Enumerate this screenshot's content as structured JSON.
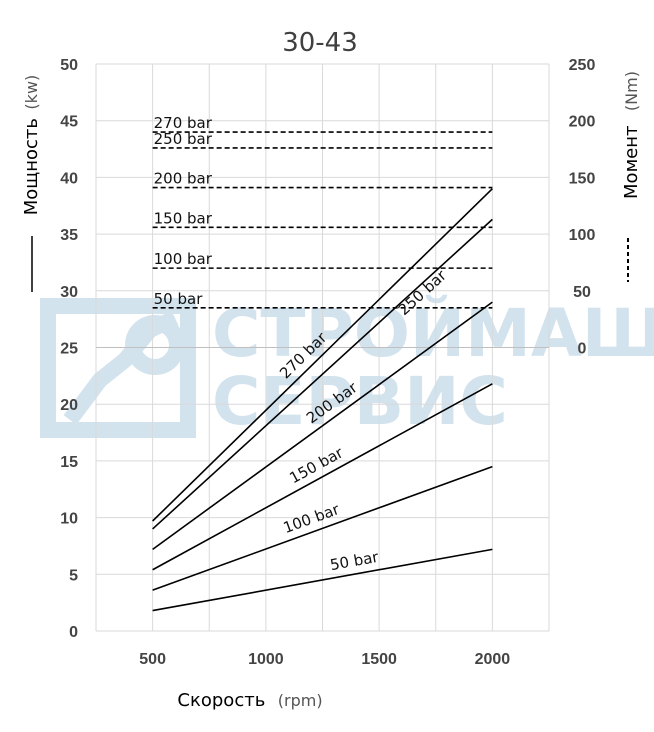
{
  "chart_data": {
    "type": "line",
    "title": "30-43",
    "xlabel": "Скорость",
    "xlabel_unit": "(rpm)",
    "ylabel_left": "Мощность",
    "ylabel_left_unit": "(kw)",
    "ylabel_right": "Момент",
    "ylabel_right_unit": "(Nm)",
    "left_legend_symbol": "solid",
    "right_legend_symbol": "dashed",
    "xlim": [
      250,
      2250
    ],
    "ylim_left": [
      0,
      50
    ],
    "ylim_right": [
      0,
      250
    ],
    "x_ticks": [
      "500",
      "1000",
      "1500",
      "2000"
    ],
    "y_ticks_left": [
      "0",
      "5",
      "10",
      "15",
      "20",
      "25",
      "30",
      "35",
      "40",
      "45",
      "50"
    ],
    "y_ticks_right": [
      "0",
      "50",
      "100",
      "150",
      "200",
      "250"
    ],
    "grid": true,
    "power_series": [
      {
        "name": "270 bar",
        "x": [
          500,
          2000
        ],
        "y": [
          9.7,
          39.0
        ]
      },
      {
        "name": "250 bar",
        "x": [
          500,
          2000
        ],
        "y": [
          9.0,
          36.3
        ]
      },
      {
        "name": "200 bar",
        "x": [
          500,
          2000
        ],
        "y": [
          7.2,
          29.0
        ]
      },
      {
        "name": "150 bar",
        "x": [
          500,
          2000
        ],
        "y": [
          5.4,
          21.8
        ]
      },
      {
        "name": "100 bar",
        "x": [
          500,
          2000
        ],
        "y": [
          3.6,
          14.5
        ]
      },
      {
        "name": "50 bar",
        "x": [
          500,
          2000
        ],
        "y": [
          1.8,
          7.2
        ]
      }
    ],
    "torque_series": [
      {
        "name": "270 bar",
        "x": [
          500,
          2000
        ],
        "y": [
          190
        ]
      },
      {
        "name": "250 bar",
        "x": [
          500,
          2000
        ],
        "y": [
          176
        ]
      },
      {
        "name": "200 bar",
        "x": [
          500,
          2000
        ],
        "y": [
          141
        ]
      },
      {
        "name": "150 bar",
        "x": [
          500,
          2000
        ],
        "y": [
          106
        ]
      },
      {
        "name": "100 bar",
        "x": [
          500,
          2000
        ],
        "y": [
          70
        ]
      },
      {
        "name": "50 bar",
        "x": [
          500,
          2000
        ],
        "y": [
          35
        ]
      }
    ]
  },
  "watermark": {
    "line1": "СТРОЙМАШ",
    "line2": "СЕРВИС",
    "color": "#d3e3ee"
  }
}
